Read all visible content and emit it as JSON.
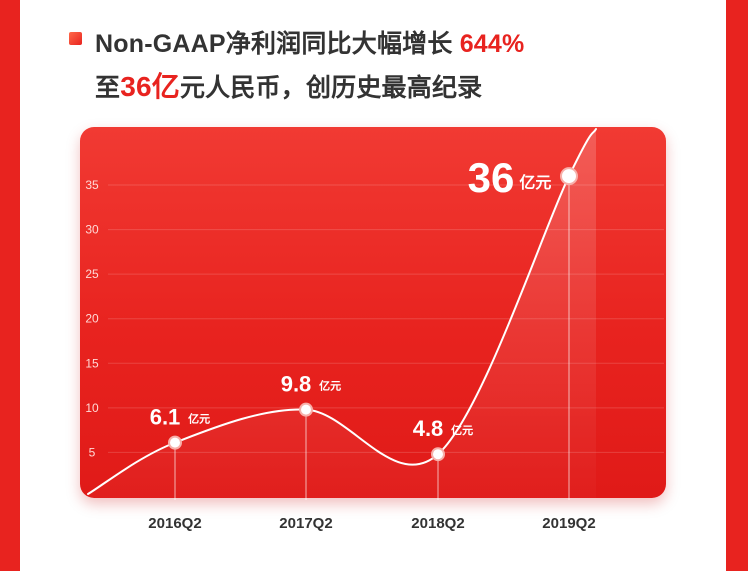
{
  "header": {
    "line1_prefix": "Non-GAAP净利润同比大幅增长 ",
    "line1_growth": "644%",
    "line2_prefix": "至",
    "line2_amount": "36亿",
    "line2_suffix": "元人民币，创历史最高纪录"
  },
  "chart_data": {
    "type": "line",
    "categories": [
      "2016Q2",
      "2017Q2",
      "2018Q2",
      "2019Q2"
    ],
    "series": [
      {
        "values": [
          6.1,
          9.8,
          4.8,
          36
        ],
        "labels": [
          "6.1",
          "9.8",
          "4.8",
          "36"
        ],
        "unit": "亿元"
      }
    ],
    "yticks": [
      5,
      10,
      15,
      20,
      25,
      30,
      35
    ],
    "ylim": [
      0,
      38
    ],
    "grid": true,
    "colors": {
      "background": "#e8231f",
      "line": "#ffffff",
      "tick_text": "#ffd9d6",
      "axis_label": "#333333"
    }
  }
}
